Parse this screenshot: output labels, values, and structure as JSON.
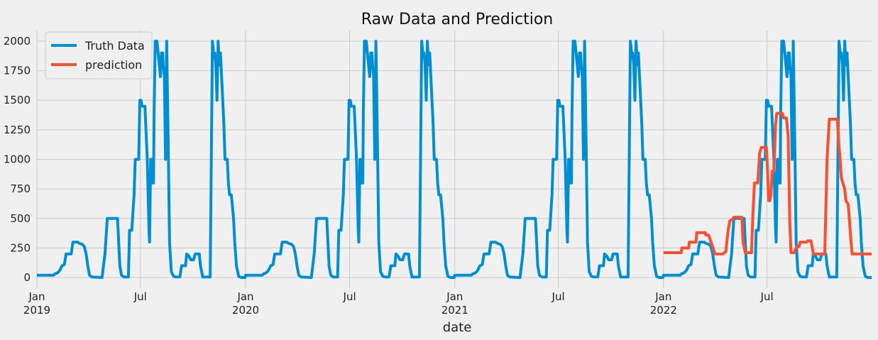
{
  "chart_data": {
    "type": "line",
    "title": "Raw Data and Prediction",
    "xlabel": "date",
    "ylabel": "",
    "xlim": [
      "2019-01-01",
      "2022-12-31"
    ],
    "ylim": [
      -90,
      2090
    ],
    "y_ticks": [
      0,
      250,
      500,
      750,
      1000,
      1250,
      1500,
      1750,
      2000
    ],
    "x_ticks": [
      {
        "date": "2019-01-01",
        "label": "Jan",
        "sublabel": "2019"
      },
      {
        "date": "2019-07-01",
        "label": "Jul",
        "sublabel": ""
      },
      {
        "date": "2020-01-01",
        "label": "Jan",
        "sublabel": "2020"
      },
      {
        "date": "2020-07-01",
        "label": "Jul",
        "sublabel": ""
      },
      {
        "date": "2021-01-01",
        "label": "Jan",
        "sublabel": "2021"
      },
      {
        "date": "2021-07-01",
        "label": "Jul",
        "sublabel": ""
      },
      {
        "date": "2022-01-01",
        "label": "Jan",
        "sublabel": "2022"
      },
      {
        "date": "2022-07-01",
        "label": "Jul",
        "sublabel": ""
      }
    ],
    "grid": true,
    "legend_position": "top-left",
    "series": [
      {
        "name": "Truth Data",
        "color": "#008fd5",
        "pattern_start": [
          "2019-01-01",
          "2020-01-01",
          "2021-01-01",
          "2022-01-01"
        ],
        "pattern": [
          [
            "01-01",
            20
          ],
          [
            "01-30",
            20
          ],
          [
            "02-01",
            30
          ],
          [
            "02-06",
            40
          ],
          [
            "02-10",
            60
          ],
          [
            "02-14",
            100
          ],
          [
            "02-18",
            110
          ],
          [
            "02-21",
            200
          ],
          [
            "03-02",
            200
          ],
          [
            "03-05",
            300
          ],
          [
            "03-13",
            300
          ],
          [
            "03-16",
            290
          ],
          [
            "03-22",
            280
          ],
          [
            "03-25",
            260
          ],
          [
            "03-28",
            200
          ],
          [
            "03-31",
            100
          ],
          [
            "04-03",
            20
          ],
          [
            "04-07",
            5
          ],
          [
            "04-25",
            0
          ],
          [
            "04-30",
            200
          ],
          [
            "05-04",
            500
          ],
          [
            "05-22",
            500
          ],
          [
            "05-26",
            100
          ],
          [
            "05-29",
            20
          ],
          [
            "06-02",
            5
          ],
          [
            "06-10",
            5
          ],
          [
            "06-12",
            400
          ],
          [
            "06-16",
            400
          ],
          [
            "06-20",
            700
          ],
          [
            "06-22",
            1000
          ],
          [
            "06-28",
            1000
          ],
          [
            "06-30",
            1500
          ],
          [
            "07-02",
            1500
          ],
          [
            "07-04",
            1450
          ],
          [
            "07-09",
            1450
          ],
          [
            "07-13",
            1000
          ],
          [
            "07-16",
            400
          ],
          [
            "07-17",
            300
          ],
          [
            "07-19",
            1000
          ],
          [
            "07-21",
            800
          ],
          [
            "07-22",
            1000
          ],
          [
            "07-24",
            800
          ],
          [
            "07-25",
            1400
          ],
          [
            "07-27",
            2000
          ],
          [
            "07-30",
            2000
          ],
          [
            "08-01",
            1900
          ],
          [
            "08-03",
            1800
          ],
          [
            "08-05",
            1700
          ],
          [
            "08-07",
            1900
          ],
          [
            "08-09",
            1900
          ],
          [
            "08-10",
            1800
          ],
          [
            "08-12",
            1700
          ],
          [
            "08-14",
            1000
          ],
          [
            "08-16",
            2000
          ],
          [
            "08-19",
            1000
          ],
          [
            "08-21",
            300
          ],
          [
            "08-24",
            50
          ],
          [
            "08-28",
            10
          ],
          [
            "09-01",
            5
          ],
          [
            "09-08",
            5
          ],
          [
            "09-11",
            100
          ],
          [
            "09-18",
            100
          ],
          [
            "09-20",
            200
          ],
          [
            "09-24",
            180
          ],
          [
            "09-27",
            150
          ],
          [
            "10-02",
            150
          ],
          [
            "10-05",
            200
          ],
          [
            "10-12",
            200
          ],
          [
            "10-14",
            100
          ],
          [
            "10-18",
            5
          ],
          [
            "10-31",
            5
          ],
          [
            "11-02",
            1000
          ],
          [
            "11-04",
            2000
          ],
          [
            "11-06",
            1900
          ],
          [
            "11-08",
            1900
          ],
          [
            "11-10",
            1800
          ],
          [
            "11-12",
            1500
          ],
          [
            "11-14",
            2000
          ],
          [
            "11-16",
            1800
          ],
          [
            "11-18",
            1900
          ],
          [
            "11-20",
            1700
          ],
          [
            "11-22",
            1500
          ],
          [
            "11-24",
            1300
          ],
          [
            "11-26",
            1000
          ],
          [
            "11-30",
            1000
          ],
          [
            "12-02",
            800
          ],
          [
            "12-04",
            700
          ],
          [
            "12-07",
            700
          ],
          [
            "12-09",
            600
          ],
          [
            "12-11",
            500
          ],
          [
            "12-13",
            300
          ],
          [
            "12-16",
            100
          ],
          [
            "12-20",
            10
          ],
          [
            "12-24",
            0
          ],
          [
            "12-31",
            0
          ]
        ]
      },
      {
        "name": "prediction",
        "color": "#fc4f30",
        "points": [
          [
            "2022-01-01",
            210
          ],
          [
            "2022-02-01",
            210
          ],
          [
            "2022-02-02",
            250
          ],
          [
            "2022-02-14",
            250
          ],
          [
            "2022-02-15",
            300
          ],
          [
            "2022-02-27",
            300
          ],
          [
            "2022-02-28",
            380
          ],
          [
            "2022-03-15",
            380
          ],
          [
            "2022-03-16",
            360
          ],
          [
            "2022-03-21",
            360
          ],
          [
            "2022-03-25",
            300
          ],
          [
            "2022-03-28",
            260
          ],
          [
            "2022-04-01",
            200
          ],
          [
            "2022-04-15",
            200
          ],
          [
            "2022-04-20",
            220
          ],
          [
            "2022-04-24",
            400
          ],
          [
            "2022-04-27",
            480
          ],
          [
            "2022-05-01",
            490
          ],
          [
            "2022-05-04",
            510
          ],
          [
            "2022-05-18",
            510
          ],
          [
            "2022-05-20",
            300
          ],
          [
            "2022-05-24",
            210
          ],
          [
            "2022-06-04",
            210
          ],
          [
            "2022-06-06",
            500
          ],
          [
            "2022-06-09",
            800
          ],
          [
            "2022-06-15",
            800
          ],
          [
            "2022-06-18",
            1050
          ],
          [
            "2022-06-21",
            1100
          ],
          [
            "2022-06-30",
            1100
          ],
          [
            "2022-07-02",
            900
          ],
          [
            "2022-07-04",
            650
          ],
          [
            "2022-07-06",
            650
          ],
          [
            "2022-07-08",
            700
          ],
          [
            "2022-07-10",
            900
          ],
          [
            "2022-07-13",
            900
          ],
          [
            "2022-07-16",
            1300
          ],
          [
            "2022-07-18",
            1390
          ],
          [
            "2022-07-28",
            1390
          ],
          [
            "2022-07-30",
            1350
          ],
          [
            "2022-08-04",
            1350
          ],
          [
            "2022-08-07",
            1200
          ],
          [
            "2022-08-10",
            450
          ],
          [
            "2022-08-12",
            210
          ],
          [
            "2022-08-18",
            210
          ],
          [
            "2022-08-20",
            240
          ],
          [
            "2022-08-22",
            260
          ],
          [
            "2022-08-26",
            260
          ],
          [
            "2022-08-28",
            300
          ],
          [
            "2022-09-08",
            300
          ],
          [
            "2022-09-10",
            310
          ],
          [
            "2022-09-16",
            310
          ],
          [
            "2022-09-18",
            260
          ],
          [
            "2022-09-20",
            200
          ],
          [
            "2022-10-10",
            200
          ],
          [
            "2022-10-14",
            1000
          ],
          [
            "2022-10-18",
            1340
          ],
          [
            "2022-11-01",
            1340
          ],
          [
            "2022-11-04",
            1100
          ],
          [
            "2022-11-06",
            1000
          ],
          [
            "2022-11-08",
            850
          ],
          [
            "2022-11-10",
            810
          ],
          [
            "2022-11-14",
            750
          ],
          [
            "2022-11-16",
            650
          ],
          [
            "2022-11-20",
            620
          ],
          [
            "2022-11-22",
            500
          ],
          [
            "2022-11-25",
            300
          ],
          [
            "2022-11-27",
            200
          ],
          [
            "2022-12-31",
            200
          ]
        ]
      }
    ]
  }
}
